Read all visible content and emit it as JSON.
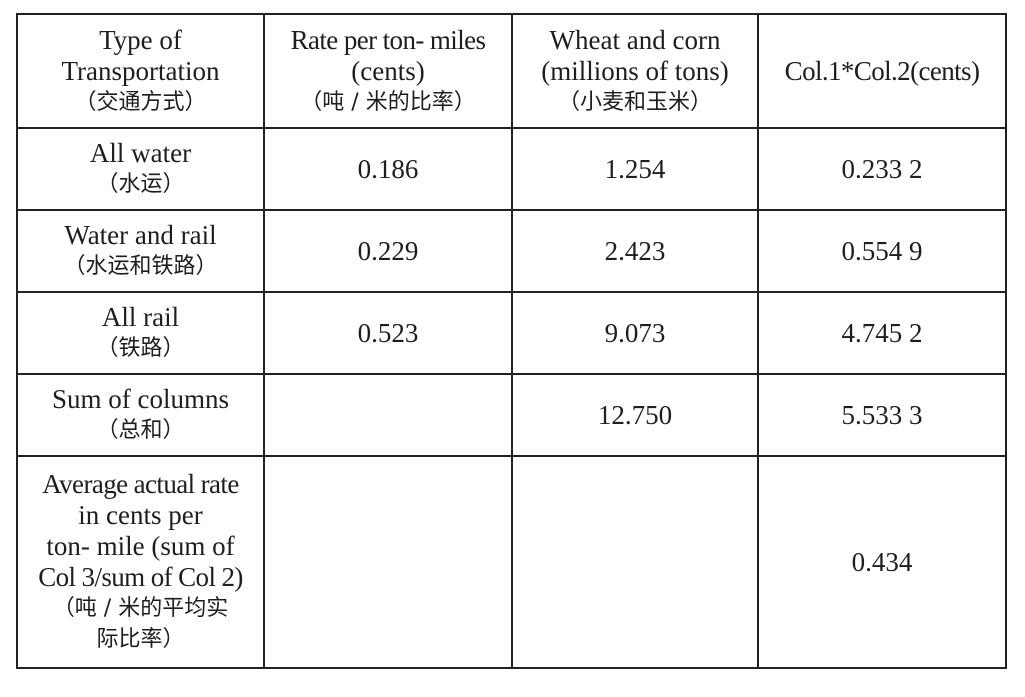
{
  "table": {
    "header": {
      "type": {
        "en1": "Type of",
        "en2": "Transportation",
        "cn": "（交通方式）"
      },
      "rate": {
        "en1": "Rate per ton- miles",
        "en2": "(cents)",
        "cn": "（吨 / 米的比率）"
      },
      "wheat": {
        "en1": "Wheat and corn",
        "en2": "(millions of tons)",
        "cn": "（小麦和玉米）"
      },
      "product": {
        "en1": "Col.1*Col.2(cents)"
      }
    },
    "rows": [
      {
        "label_en": "All water",
        "label_cn": "（水运）",
        "rate": "0.186",
        "tons": "1.254",
        "product": "0.233 2"
      },
      {
        "label_en": "Water and rail",
        "label_cn": "（水运和铁路）",
        "rate": "0.229",
        "tons": "2.423",
        "product": "0.554 9"
      },
      {
        "label_en": "All rail",
        "label_cn": "（铁路）",
        "rate": "0.523",
        "tons": "9.073",
        "product": "4.745 2"
      },
      {
        "label_en": "Sum of columns",
        "label_cn": "（总和）",
        "rate": "",
        "tons": "12.750",
        "product": "5.533 3"
      }
    ],
    "average": {
      "label_lines": [
        "Average actual rate",
        "in cents per",
        "ton- mile (sum of",
        "Col 3/sum of Col 2)"
      ],
      "label_cn_lines": [
        "（吨 / 米的平均实",
        "际比率）"
      ],
      "value": "0.434"
    }
  }
}
